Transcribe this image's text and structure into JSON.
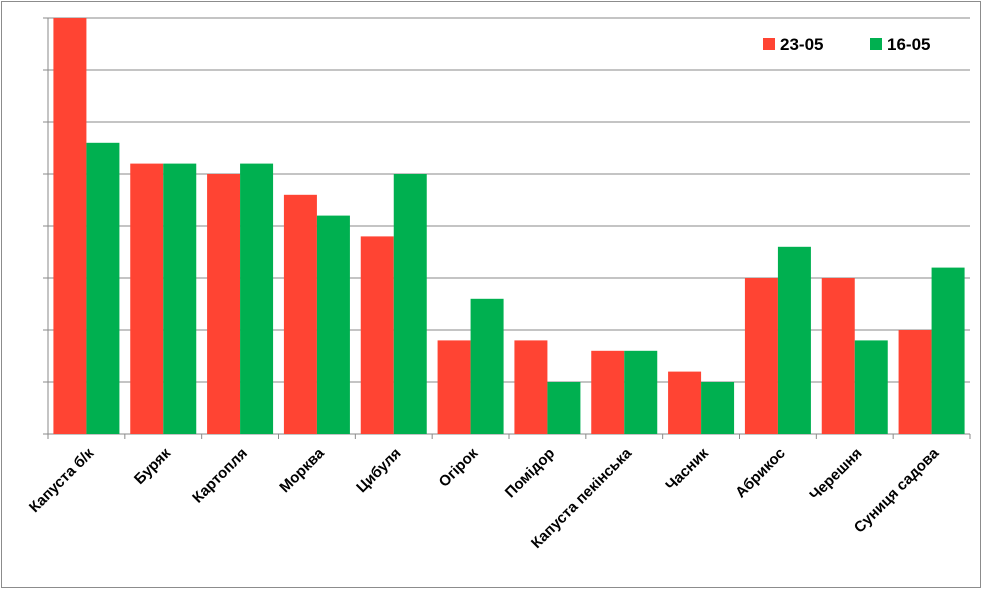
{
  "chart_data": {
    "type": "bar",
    "title": "",
    "xlabel": "",
    "ylabel": "",
    "categories": [
      "Капуста б/к",
      "Буряк",
      "Картопля",
      "Морква",
      "Цибуля",
      "Огірок",
      "Помідор",
      "Капуста пекінська",
      "Часник",
      "Абрикос",
      "Черешня",
      "Суниця садова"
    ],
    "series": [
      {
        "name": "23-05",
        "color": "#ff4433",
        "values": [
          8.0,
          5.2,
          5.0,
          4.6,
          3.8,
          1.8,
          1.8,
          1.6,
          1.2,
          3.0,
          3.0,
          2.0
        ]
      },
      {
        "name": "16-05",
        "color": "#00b050",
        "values": [
          5.6,
          5.2,
          5.2,
          4.2,
          5.0,
          2.6,
          1.0,
          1.6,
          1.0,
          3.6,
          1.8,
          3.2
        ]
      }
    ],
    "ylim": [
      0,
      8
    ],
    "y_gridline_step": 1,
    "y_tick_labels_shown": false,
    "grid": true,
    "legend": "top-right"
  }
}
